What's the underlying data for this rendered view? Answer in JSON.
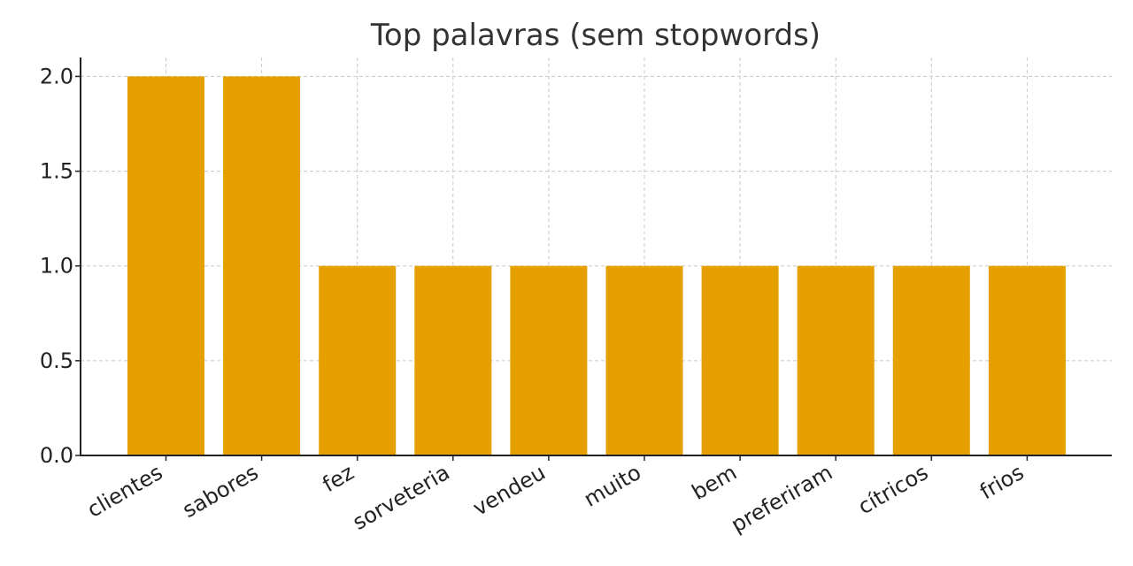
{
  "chart_data": {
    "type": "bar",
    "title": "Top palavras (sem stopwords)",
    "xlabel": "",
    "ylabel": "",
    "categories": [
      "clientes",
      "sabores",
      "fez",
      "sorveteria",
      "vendeu",
      "muito",
      "bem",
      "preferiram",
      "cítricos",
      "frios"
    ],
    "values": [
      2,
      2,
      1,
      1,
      1,
      1,
      1,
      1,
      1,
      1
    ],
    "ylim": [
      0,
      2.1
    ],
    "yticks": [
      0.0,
      0.5,
      1.0,
      1.5,
      2.0
    ],
    "ytick_labels": [
      "0.0",
      "0.5",
      "1.0",
      "1.5",
      "2.0"
    ],
    "grid": true,
    "bar_color": "#e5a000",
    "xtick_rotation_deg": -30
  }
}
